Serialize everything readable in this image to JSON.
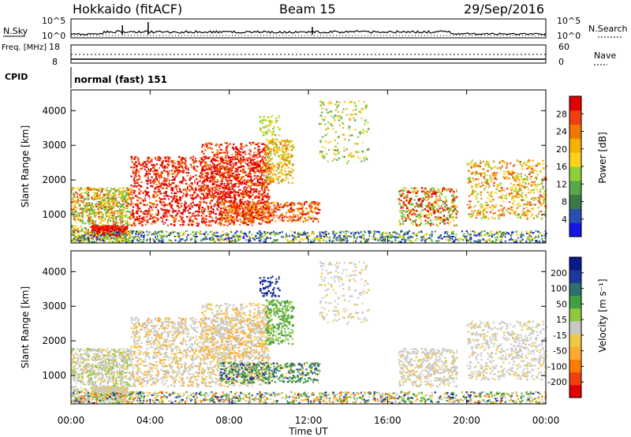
{
  "header": {
    "station": "Hokkaido (fitACF)",
    "beam": "Beam 15",
    "date": "29/Sep/2016"
  },
  "colors": {
    "power": [
      "#1515e6",
      "#2a4fb0",
      "#3c7a4a",
      "#56a846",
      "#8fcf3a",
      "#ffd21a",
      "#f5b000",
      "#f07800",
      "#f04010",
      "#e00000"
    ],
    "velocity": [
      "#e00000",
      "#f04010",
      "#ff7a00",
      "#ffaa30",
      "#f0c848",
      "#c8c8c8",
      "#90c840",
      "#40a040",
      "#2d6e6e",
      "#1a3a9a",
      "#0a1a8a"
    ]
  },
  "chart_data": [
    {
      "type": "line",
      "title": "N.Sky / N.Search",
      "ylabel": "N.Sky",
      "y_ticks": [
        "10^5",
        "10^0"
      ],
      "right_ticks": [
        "10^5",
        "10^0"
      ],
      "right_label": "N.Search"
    },
    {
      "type": "line",
      "ylabel": "Freq. [MHz]",
      "left_ticks": [
        "18",
        "8"
      ],
      "right_ticks": [
        "60",
        "0"
      ],
      "right_label": "Nave"
    },
    {
      "type": "table",
      "label": "CPID",
      "text": "normal (fast) 151"
    },
    {
      "type": "heatmap",
      "ylabel": "Slant Range [km]",
      "y_ticks": [
        "1000",
        "2000",
        "3000",
        "4000"
      ],
      "ylim": [
        180,
        4600
      ],
      "colorbar_label": "Power [dB]",
      "colorbar_ticks": [
        "4",
        "8",
        "12",
        "16",
        "20",
        "24",
        "28"
      ]
    },
    {
      "type": "heatmap",
      "ylabel": "Slant Range [km]",
      "y_ticks": [
        "1000",
        "2000",
        "3000",
        "4000"
      ],
      "ylim": [
        180,
        4600
      ],
      "colorbar_label": "Velocity [m s⁻¹]",
      "colorbar_ticks": [
        "200",
        "100",
        "50",
        "15",
        "-15",
        "-50",
        "-100",
        "-200"
      ]
    }
  ],
  "x_axis": {
    "ticks": [
      "00:00",
      "04:00",
      "08:00",
      "12:00",
      "16:00",
      "20:00",
      "00:00"
    ],
    "label": "Time UT"
  }
}
